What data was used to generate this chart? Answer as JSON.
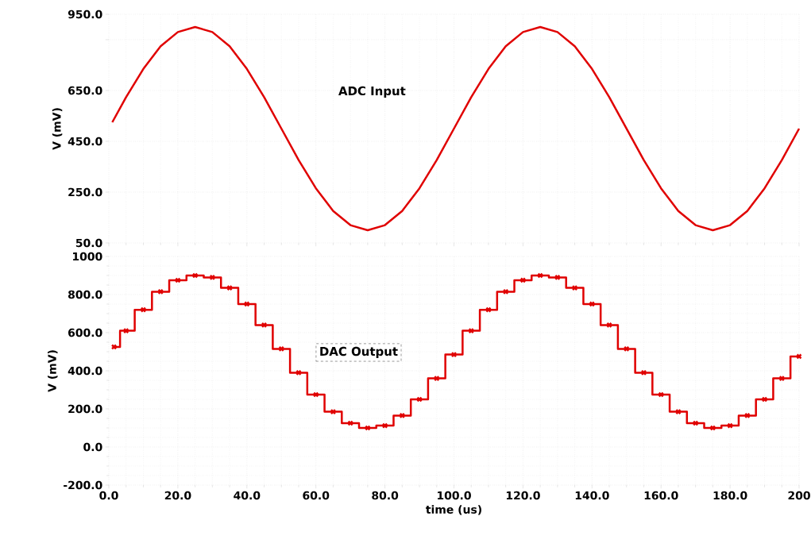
{
  "chart_data": [
    {
      "type": "line",
      "ylabel": "V (mV)",
      "annotations": [
        "ADC Input"
      ],
      "grid": true,
      "tick_labels": "y",
      "marker": "none",
      "x": [
        1,
        5,
        10,
        15,
        20,
        25,
        30,
        35,
        40,
        45,
        50,
        55,
        60,
        65,
        70,
        75,
        80,
        85,
        90,
        95,
        100,
        105,
        110,
        115,
        120,
        125,
        130,
        135,
        140,
        145,
        150,
        155,
        160,
        165,
        170,
        175,
        180,
        185,
        190,
        195,
        200
      ],
      "series": [
        {
          "color": "#e00000",
          "values": [
            525,
            624,
            735,
            824,
            880,
            900,
            880,
            824,
            735,
            624,
            500,
            376,
            265,
            176,
            120,
            100,
            120,
            176,
            265,
            376,
            500,
            624,
            735,
            824,
            880,
            900,
            880,
            824,
            735,
            624,
            500,
            376,
            265,
            176,
            120,
            100,
            120,
            176,
            265,
            376,
            500
          ]
        }
      ],
      "xlim": [
        0,
        200
      ],
      "xticks": [
        {
          "value": 0,
          "label": null
        },
        {
          "value": 20,
          "label": null
        },
        {
          "value": 40,
          "label": null
        },
        {
          "value": 60,
          "label": null
        },
        {
          "value": 80,
          "label": null
        },
        {
          "value": 100,
          "label": null
        },
        {
          "value": 120,
          "label": null
        },
        {
          "value": 140,
          "label": null
        },
        {
          "value": 160,
          "label": null
        },
        {
          "value": 180,
          "label": null
        },
        {
          "value": 200,
          "label": null
        }
      ],
      "ylim": [
        50,
        950
      ],
      "yticks": [
        {
          "value": 50,
          "label": "50.0"
        },
        {
          "value": 250,
          "label": "250.0"
        },
        {
          "value": 450,
          "label": "450.0"
        },
        {
          "value": 650,
          "label": "650.0"
        },
        {
          "value": 850,
          "label": null
        },
        {
          "value": 950,
          "label": "950.0"
        }
      ]
    },
    {
      "type": "step",
      "ylabel": "V (mV)",
      "xlabel": "time (us)",
      "annotations": [
        "DAC Output"
      ],
      "grid": true,
      "marker": "cross",
      "x": [
        1.5,
        5,
        10,
        15,
        20,
        25,
        30,
        35,
        40,
        45,
        50,
        55,
        60,
        65,
        70,
        75,
        80,
        85,
        90,
        95,
        100,
        105,
        110,
        115,
        120,
        125,
        130,
        135,
        140,
        145,
        150,
        155,
        160,
        165,
        170,
        175,
        180,
        185,
        190,
        195,
        200
      ],
      "series": [
        {
          "color": "#e00000",
          "values": [
            525,
            610,
            720,
            815,
            875,
            900,
            890,
            835,
            750,
            640,
            515,
            390,
            275,
            185,
            125,
            100,
            112,
            165,
            250,
            360,
            485,
            610,
            720,
            815,
            875,
            900,
            890,
            835,
            750,
            640,
            515,
            390,
            275,
            185,
            125,
            100,
            112,
            165,
            250,
            360,
            475
          ]
        }
      ],
      "xlim": [
        0,
        200
      ],
      "xticks": [
        {
          "value": 0,
          "label": "0.0"
        },
        {
          "value": 20,
          "label": "20.0"
        },
        {
          "value": 40,
          "label": "40.0"
        },
        {
          "value": 60,
          "label": "60.0"
        },
        {
          "value": 80,
          "label": "80.0"
        },
        {
          "value": 100,
          "label": "100.0"
        },
        {
          "value": 120,
          "label": "120.0"
        },
        {
          "value": 140,
          "label": "140.0"
        },
        {
          "value": 160,
          "label": "160.0"
        },
        {
          "value": 180,
          "label": "180.0"
        },
        {
          "value": 200,
          "label": "200"
        }
      ],
      "ylim": [
        -200,
        1000
      ],
      "yticks": [
        {
          "value": -200,
          "label": "-200.0"
        },
        {
          "value": 0,
          "label": "0.0"
        },
        {
          "value": 200,
          "label": "200.0"
        },
        {
          "value": 400,
          "label": "400.0"
        },
        {
          "value": 600,
          "label": "600.0"
        },
        {
          "value": 800,
          "label": "800.0"
        },
        {
          "value": 1000,
          "label": "1000"
        }
      ]
    }
  ]
}
